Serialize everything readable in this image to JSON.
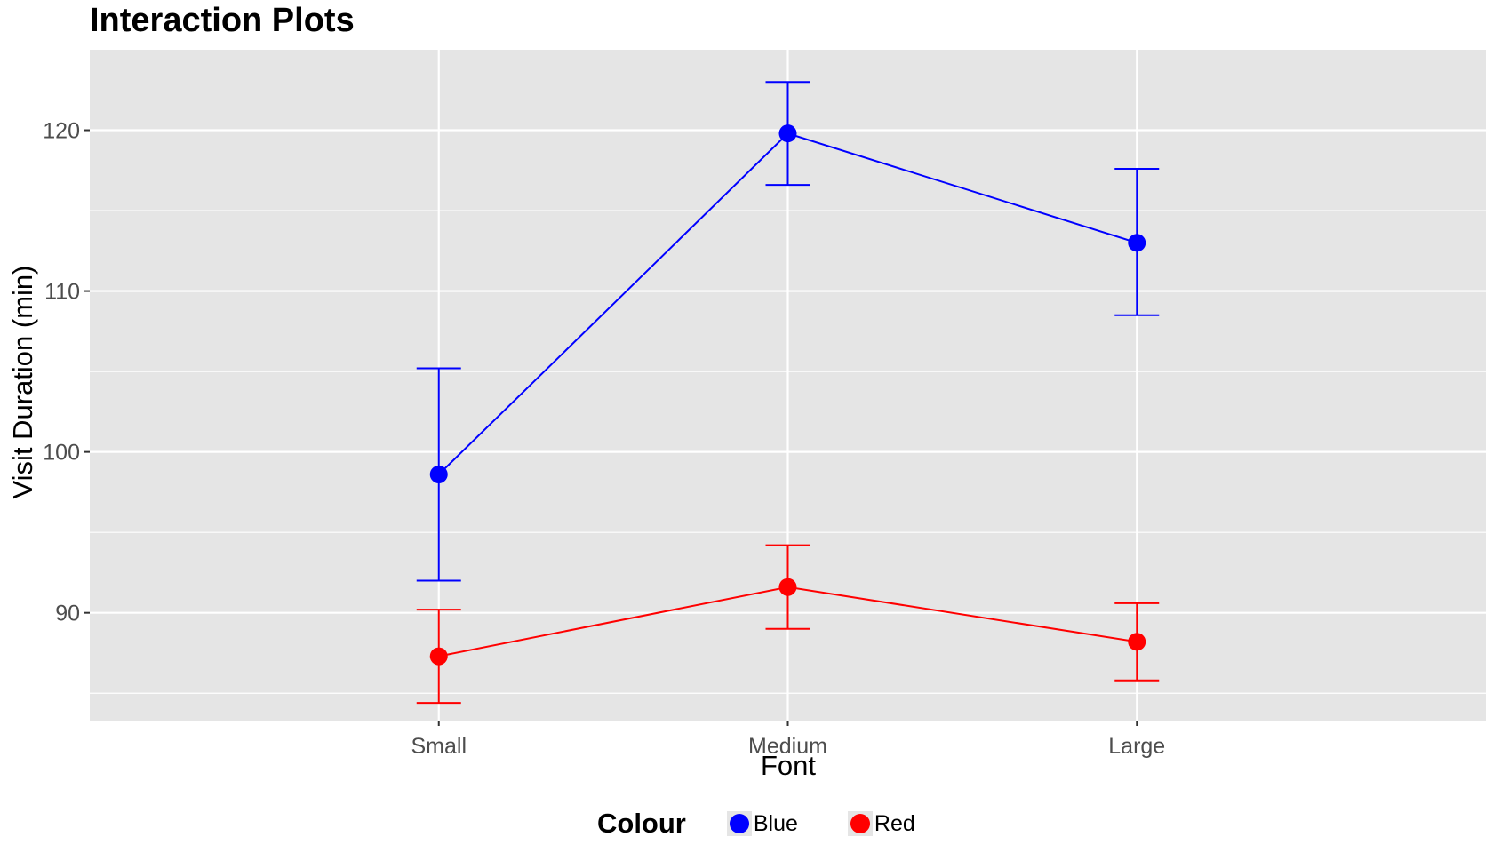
{
  "chart_data": {
    "type": "line",
    "title": "Interaction Plots",
    "xlabel": "Font",
    "ylabel": "Visit Duration (min)",
    "categories": [
      "Small",
      "Medium",
      "Large"
    ],
    "ylim": [
      83.3,
      125
    ],
    "y_ticks": [
      90,
      100,
      110,
      120
    ],
    "y_tick_labels": [
      "90",
      "100",
      "110",
      "120"
    ],
    "grid": true,
    "error_bars": true,
    "legend_title": "Colour",
    "legend_position": "bottom",
    "series": [
      {
        "name": "Blue",
        "color": "#0000ff",
        "values": [
          98.6,
          119.8,
          113.0
        ],
        "lower": [
          92.0,
          116.6,
          108.5
        ],
        "upper": [
          105.2,
          123.0,
          117.6
        ]
      },
      {
        "name": "Red",
        "color": "#ff0000",
        "values": [
          87.3,
          91.6,
          88.2
        ],
        "lower": [
          84.4,
          89.0,
          85.8
        ],
        "upper": [
          90.2,
          94.2,
          90.6
        ]
      }
    ]
  }
}
